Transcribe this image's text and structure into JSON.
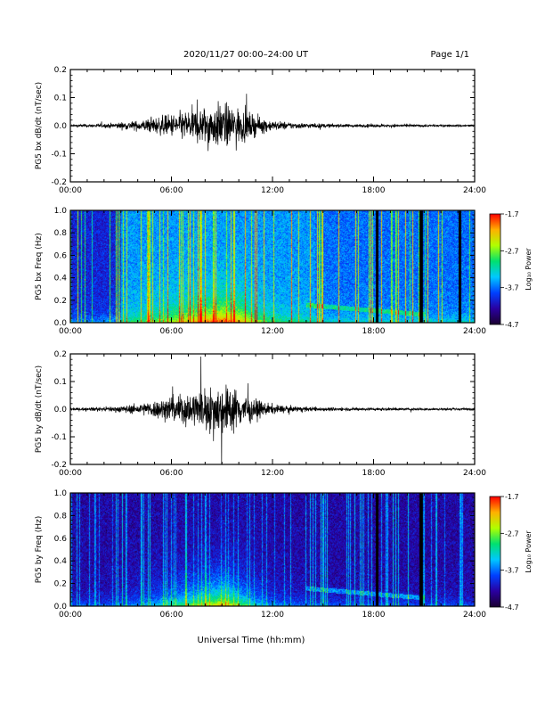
{
  "header": {
    "date_range": "2020/11/27   00:00–24:00 UT",
    "page": "Page 1/1"
  },
  "footer": {
    "xlabel": "Universal Time (hh:mm)"
  },
  "colors": {
    "trace": "#000000",
    "spectrogram_scale": [
      "#1b0030",
      "#2a00a0",
      "#0040ff",
      "#00c8ff",
      "#00e070",
      "#b0ff00",
      "#ffb000",
      "#ff0000"
    ]
  },
  "chart_data": [
    {
      "type": "line",
      "ylabel": "PG5 bx dB/dt (nT/sec)",
      "x_ticks": [
        "00:00",
        "06:00",
        "12:00",
        "18:00",
        "24:00"
      ],
      "xlim_hours": [
        0,
        24
      ],
      "ylim": [
        -0.2,
        0.2
      ],
      "y_ticks": [
        "-0.2",
        "-0.1",
        "0.0",
        "0.1",
        "0.2"
      ],
      "envelope": {
        "x_hours": [
          0,
          2,
          4,
          6,
          8,
          9,
          10,
          11,
          12,
          13,
          14,
          16,
          18,
          20,
          22,
          24
        ],
        "amplitude": [
          0.008,
          0.012,
          0.03,
          0.07,
          0.12,
          0.14,
          0.11,
          0.06,
          0.03,
          0.022,
          0.016,
          0.01,
          0.01,
          0.008,
          0.007,
          0.007
        ]
      }
    },
    {
      "type": "heatmap",
      "ylabel": "PG5 bx Freq (Hz)",
      "x_ticks": [
        "00:00",
        "06:00",
        "12:00",
        "18:00",
        "24:00"
      ],
      "xlim_hours": [
        0,
        24
      ],
      "ylim": [
        0.0,
        1.0
      ],
      "y_ticks": [
        "0.0",
        "0.2",
        "0.4",
        "0.6",
        "0.8",
        "1.0"
      ],
      "colorbar": {
        "label": "Log₁₀ Power",
        "ticks": [
          "-1.7",
          "-2.7",
          "-3.7",
          "-4.7"
        ],
        "range": [
          -4.7,
          -1.7
        ]
      },
      "data_gaps_hours": [
        18.2,
        20.8,
        23.1
      ]
    },
    {
      "type": "line",
      "ylabel": "PG5 by dB/dt (nT/sec)",
      "x_ticks": [
        "00:00",
        "06:00",
        "12:00",
        "18:00",
        "24:00"
      ],
      "xlim_hours": [
        0,
        24
      ],
      "ylim": [
        -0.2,
        0.2
      ],
      "y_ticks": [
        "-0.2",
        "-0.1",
        "0.0",
        "0.1",
        "0.2"
      ],
      "envelope": {
        "x_hours": [
          0,
          2,
          4,
          6,
          8,
          9,
          10,
          11,
          12,
          13,
          14,
          16,
          18,
          20,
          22,
          24
        ],
        "amplitude": [
          0.008,
          0.012,
          0.03,
          0.08,
          0.13,
          0.17,
          0.12,
          0.06,
          0.03,
          0.02,
          0.015,
          0.01,
          0.01,
          0.008,
          0.007,
          0.007
        ]
      }
    },
    {
      "type": "heatmap",
      "ylabel": "PG5 by Freq (Hz)",
      "x_ticks": [
        "00:00",
        "06:00",
        "12:00",
        "18:00",
        "24:00"
      ],
      "xlim_hours": [
        0,
        24
      ],
      "ylim": [
        0.0,
        1.0
      ],
      "y_ticks": [
        "0.0",
        "0.2",
        "0.4",
        "0.6",
        "0.8",
        "1.0"
      ],
      "colorbar": {
        "label": "Log₁₀ Power",
        "ticks": [
          "-1.7",
          "-2.7",
          "-3.7",
          "-4.7"
        ],
        "range": [
          -4.7,
          -1.7
        ]
      },
      "data_gaps_hours": [
        18.2,
        20.8
      ]
    }
  ]
}
